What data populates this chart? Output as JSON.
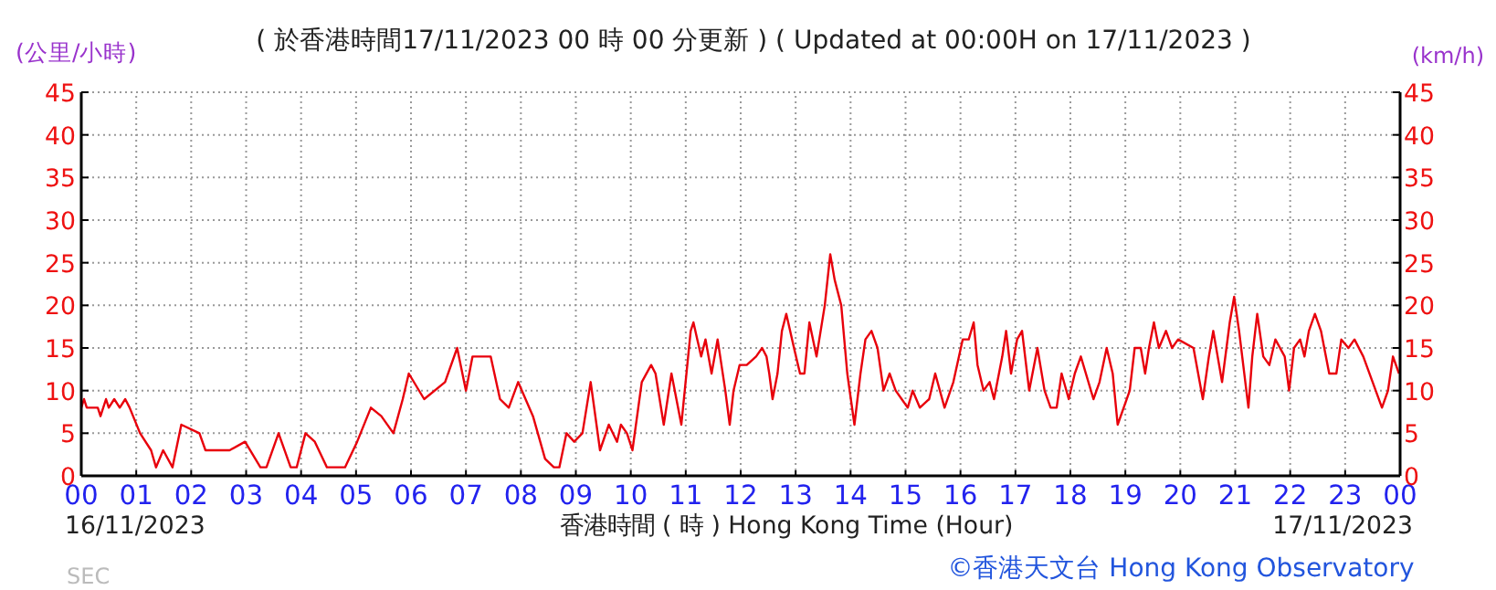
{
  "chart_data": {
    "type": "line",
    "title": "( 於香港時間17/11/2023 00 時 00 分更新 ) ( Updated at 00:00H on 17/11/2023 )",
    "xlabel": "香港時間 ( 時 ) Hong Kong Time (Hour)",
    "ylabel": "(公里/小時)",
    "y2label": "(km/h)",
    "annotations": [
      "16/11/2023",
      "17/11/2023",
      "©香港天文台 Hong Kong Observatory",
      "SEC"
    ],
    "xlim": [
      0,
      24
    ],
    "ylim": [
      0,
      45
    ],
    "y2lim": [
      0,
      45
    ],
    "xticks": [
      {
        "value": 0,
        "label": "00"
      },
      {
        "value": 1,
        "label": "01"
      },
      {
        "value": 2,
        "label": "02"
      },
      {
        "value": 3,
        "label": "03"
      },
      {
        "value": 4,
        "label": "04"
      },
      {
        "value": 5,
        "label": "05"
      },
      {
        "value": 6,
        "label": "06"
      },
      {
        "value": 7,
        "label": "07"
      },
      {
        "value": 8,
        "label": "08"
      },
      {
        "value": 9,
        "label": "09"
      },
      {
        "value": 10,
        "label": "10"
      },
      {
        "value": 11,
        "label": "11"
      },
      {
        "value": 12,
        "label": "12"
      },
      {
        "value": 13,
        "label": "13"
      },
      {
        "value": 14,
        "label": "14"
      },
      {
        "value": 15,
        "label": "15"
      },
      {
        "value": 16,
        "label": "16"
      },
      {
        "value": 17,
        "label": "17"
      },
      {
        "value": 18,
        "label": "18"
      },
      {
        "value": 19,
        "label": "19"
      },
      {
        "value": 20,
        "label": "20"
      },
      {
        "value": 21,
        "label": "21"
      },
      {
        "value": 22,
        "label": "22"
      },
      {
        "value": 23,
        "label": "23"
      },
      {
        "value": 24,
        "label": "00"
      }
    ],
    "yticks": [
      0,
      5,
      10,
      15,
      20,
      25,
      30,
      35,
      40,
      45
    ],
    "y2ticks": [
      0,
      5,
      10,
      15,
      20,
      25,
      30,
      35,
      40,
      45
    ],
    "grid": true,
    "line_style": "solid",
    "marker": "none",
    "series": [
      {
        "color": "#e8000b",
        "x": [
          0,
          0.05,
          0.1,
          0.3,
          0.35,
          0.45,
          0.5,
          0.6,
          0.7,
          0.8,
          0.88,
          1.07,
          1.27,
          1.36,
          1.49,
          1.66,
          1.82,
          2.15,
          2.26,
          2.7,
          2.98,
          3.26,
          3.37,
          3.59,
          3.81,
          3.92,
          4.08,
          4.25,
          4.47,
          4.8,
          5.02,
          5.27,
          5.46,
          5.68,
          5.85,
          5.96,
          6.24,
          6.62,
          6.84,
          7.0,
          7.12,
          7.45,
          7.62,
          7.78,
          7.95,
          8.22,
          8.44,
          8.6,
          8.7,
          8.83,
          8.97,
          9.12,
          9.27,
          9.44,
          9.6,
          9.75,
          9.82,
          9.93,
          10.03,
          10.2,
          10.37,
          10.45,
          10.6,
          10.74,
          10.92,
          11.09,
          11.14,
          11.28,
          11.36,
          11.47,
          11.58,
          11.72,
          11.8,
          11.87,
          11.98,
          12.11,
          12.28,
          12.39,
          12.47,
          12.52,
          12.58,
          12.67,
          12.75,
          12.83,
          12.97,
          13.08,
          13.16,
          13.25,
          13.38,
          13.53,
          13.63,
          13.71,
          13.83,
          13.94,
          14.07,
          14.18,
          14.27,
          14.38,
          14.49,
          14.6,
          14.71,
          14.82,
          14.93,
          15.04,
          15.13,
          15.26,
          15.43,
          15.54,
          15.71,
          15.87,
          16.04,
          16.15,
          16.24,
          16.31,
          16.42,
          16.53,
          16.61,
          16.76,
          16.83,
          16.92,
          17.03,
          17.12,
          17.25,
          17.4,
          17.53,
          17.64,
          17.75,
          17.84,
          17.97,
          18.08,
          18.19,
          18.42,
          18.53,
          18.66,
          18.77,
          18.86,
          18.97,
          19.08,
          19.17,
          19.28,
          19.36,
          19.43,
          19.52,
          19.61,
          19.74,
          19.85,
          19.96,
          20.24,
          20.41,
          20.52,
          20.6,
          20.76,
          20.9,
          20.98,
          21.07,
          21.24,
          21.31,
          21.4,
          21.51,
          21.62,
          21.73,
          21.9,
          21.98,
          22.07,
          22.18,
          22.26,
          22.34,
          22.45,
          22.56,
          22.71,
          22.84,
          22.93,
          23.06,
          23.17,
          23.33,
          23.5,
          23.67,
          23.78,
          23.87,
          23.98
        ],
        "values": [
          8,
          9,
          8,
          8,
          7,
          9,
          8,
          9,
          8,
          9,
          8,
          5,
          3,
          1,
          3,
          1,
          6,
          5,
          3,
          3,
          4,
          1,
          1,
          5,
          1,
          1,
          5,
          4,
          1,
          1,
          4,
          8,
          7,
          5,
          9,
          12,
          9,
          11,
          15,
          10,
          14,
          14,
          9,
          8,
          11,
          7,
          2,
          1,
          1,
          5,
          4,
          5,
          11,
          3,
          6,
          4,
          6,
          5,
          3,
          11,
          13,
          12,
          6,
          12,
          6,
          17,
          18,
          14,
          16,
          12,
          16,
          10,
          6,
          10,
          13,
          13,
          14,
          15,
          14,
          12,
          9,
          12,
          17,
          19,
          15,
          12,
          12,
          18,
          14,
          20,
          26,
          23,
          20,
          12,
          6,
          12,
          16,
          17,
          15,
          10,
          12,
          10,
          9,
          8,
          10,
          8,
          9,
          12,
          8,
          11,
          16,
          16,
          18,
          13,
          10,
          11,
          9,
          14,
          17,
          12,
          16,
          17,
          10,
          15,
          10,
          8,
          8,
          12,
          9,
          12,
          14,
          9,
          11,
          15,
          12,
          6,
          8,
          10,
          15,
          15,
          12,
          15,
          18,
          15,
          17,
          15,
          16,
          15,
          9,
          14,
          17,
          11,
          18,
          21,
          17,
          8,
          14,
          19,
          14,
          13,
          16,
          14,
          10,
          15,
          16,
          14,
          17,
          19,
          17,
          12,
          12,
          16,
          15,
          16,
          14,
          11,
          8,
          10,
          14,
          12
        ]
      }
    ]
  }
}
